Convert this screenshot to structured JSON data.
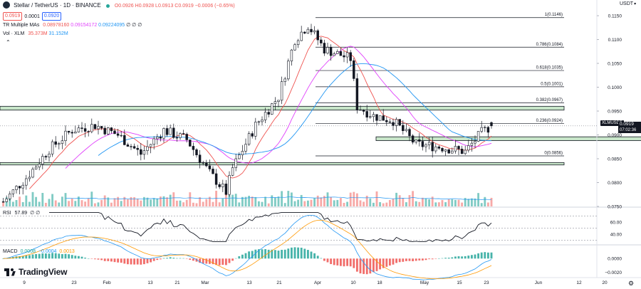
{
  "header": {
    "title": "Stellar / TetherUS · 1D · BINANCE",
    "ohlc": "O0.0926 H0.0928 L0.0913 C0.0919 −0.0006 (−0.65%)",
    "sell_price": "0.0919",
    "spread": "0.0001",
    "buy_price": "0.0920",
    "quote_currency": "USDT",
    "indicator_ma_label": "TR Multiple MAs",
    "indicator_ma_values": [
      "0.08978160",
      "0.09154172",
      "0.09224095",
      "∅ ∅ ∅"
    ],
    "indicator_vol_label": "Vol · XLM",
    "indicator_vol_values": [
      "35.373M",
      "31.152M"
    ]
  },
  "price_axis": {
    "ticks": [
      "0.1150",
      "0.1100",
      "0.1050",
      "0.1000",
      "0.0950",
      "0.0900",
      "0.0850",
      "0.0800",
      "0.0750"
    ],
    "symbol_tag": "XLMUSDT",
    "last_price": "0.0919",
    "countdown": "07:02:36"
  },
  "fib_labels": [
    "1(0.1146)",
    "0.786(0.1084)",
    "0.618(0.1035)",
    "0.5(0.1001)",
    "0.382(0.0967)",
    "0.236(0.0924)",
    "0(0.0856)"
  ],
  "rsi": {
    "label": "RSI",
    "value": "57.89",
    "extra": "∅ ∅",
    "ticks": [
      "60.00",
      "40.00"
    ]
  },
  "macd": {
    "label": "MACD",
    "values": [
      "0.0008",
      "−0.0004",
      "0.0013"
    ],
    "ticks": [
      "0.0000",
      "−0.0020"
    ]
  },
  "time_axis": [
    "9",
    "23",
    "Feb",
    "13",
    "21",
    "Mar",
    "13",
    "21",
    "Apr",
    "10",
    "18",
    "May",
    "15",
    "23",
    "Jun",
    "12",
    "20"
  ],
  "brand": "TradingView",
  "colors": {
    "up": "#26a69a",
    "down": "#ef5350",
    "zone_fill": "#c8e6c9",
    "ma_fast": "#ef5350",
    "ma_mid": "#e040fb",
    "ma_slow": "#2196f3",
    "macd_line": "#2196f3",
    "signal_line": "#ff9800"
  },
  "chart_data": {
    "type": "candlestick",
    "symbol": "XLMUSDT",
    "timeframe": "1D",
    "ylim": [
      0.075,
      0.1165
    ],
    "last": {
      "open": 0.0926,
      "high": 0.0928,
      "low": 0.0913,
      "close": 0.0919,
      "change": -0.0006,
      "change_pct": -0.65
    },
    "fib_levels": [
      {
        "ratio": 1,
        "price": 0.1146
      },
      {
        "ratio": 0.786,
        "price": 0.1084
      },
      {
        "ratio": 0.618,
        "price": 0.1035
      },
      {
        "ratio": 0.5,
        "price": 0.1001
      },
      {
        "ratio": 0.382,
        "price": 0.0967
      },
      {
        "ratio": 0.236,
        "price": 0.0924
      },
      {
        "ratio": 0,
        "price": 0.0856
      }
    ],
    "zones": [
      {
        "low": 0.0952,
        "high": 0.096
      },
      {
        "low": 0.0888,
        "high": 0.0896
      },
      {
        "low": 0.0837,
        "high": 0.0842
      }
    ],
    "close_path": [
      [
        "2023-01-02",
        0.076
      ],
      [
        "2023-01-09",
        0.081
      ],
      [
        "2023-01-16",
        0.087
      ],
      [
        "2023-01-23",
        0.091
      ],
      [
        "2023-01-30",
        0.092
      ],
      [
        "2023-02-06",
        0.09
      ],
      [
        "2023-02-13",
        0.086
      ],
      [
        "2023-02-20",
        0.091
      ],
      [
        "2023-02-27",
        0.089
      ],
      [
        "2023-03-06",
        0.082
      ],
      [
        "2023-03-11",
        0.078
      ],
      [
        "2023-03-13",
        0.083
      ],
      [
        "2023-03-20",
        0.092
      ],
      [
        "2023-03-27",
        0.098
      ],
      [
        "2023-04-01",
        0.11
      ],
      [
        "2023-04-05",
        0.113
      ],
      [
        "2023-04-10",
        0.108
      ],
      [
        "2023-04-18",
        0.106
      ],
      [
        "2023-04-20",
        0.096
      ],
      [
        "2023-04-25",
        0.094
      ],
      [
        "2023-05-01",
        0.093
      ],
      [
        "2023-05-08",
        0.088
      ],
      [
        "2023-05-15",
        0.0875
      ],
      [
        "2023-05-23",
        0.0865
      ],
      [
        "2023-05-28",
        0.0905
      ],
      [
        "2023-05-31",
        0.0919
      ]
    ],
    "volume": {
      "series": [
        "35.373M",
        "31.152M"
      ]
    },
    "rsi": {
      "value": 57.89,
      "levels": [
        70,
        50,
        30
      ]
    },
    "macd": {
      "macd": 0.0008,
      "signal": -0.0004,
      "histogram": 0.0013
    }
  }
}
